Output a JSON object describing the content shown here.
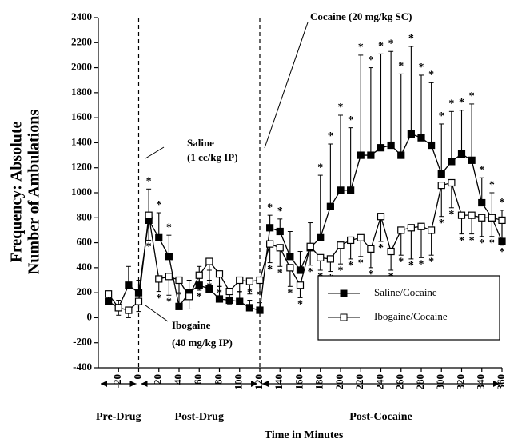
{
  "chart_data": {
    "type": "line",
    "y_label": [
      "Frequency: Absolute",
      "Number of Ambulations"
    ],
    "x_label": "Time in Minutes",
    "x": [
      -30,
      -20,
      -10,
      0,
      10,
      20,
      30,
      40,
      50,
      60,
      70,
      80,
      90,
      100,
      110,
      120,
      130,
      140,
      150,
      160,
      170,
      180,
      190,
      200,
      210,
      220,
      230,
      240,
      250,
      260,
      270,
      280,
      290,
      300,
      310,
      320,
      330,
      340,
      350,
      360
    ],
    "series": [
      {
        "name": "Saline/Cocaine",
        "color": "#000000",
        "marker_fill": "#000000",
        "error_direction": "up",
        "values": [
          130,
          80,
          260,
          200,
          780,
          640,
          490,
          90,
          200,
          260,
          230,
          150,
          140,
          130,
          80,
          60,
          720,
          690,
          490,
          380,
          560,
          640,
          890,
          1020,
          1020,
          1300,
          1300,
          1360,
          1380,
          1300,
          1470,
          1440,
          1380,
          1150,
          1250,
          1310,
          1260,
          920,
          800,
          610
        ],
        "errors": [
          80,
          60,
          150,
          100,
          250,
          200,
          170,
          100,
          100,
          150,
          150,
          100,
          80,
          80,
          60,
          60,
          100,
          100,
          200,
          150,
          200,
          500,
          500,
          600,
          500,
          800,
          700,
          750,
          750,
          650,
          700,
          500,
          500,
          400,
          400,
          350,
          450,
          200,
          200,
          250
        ],
        "significant": [
          false,
          false,
          false,
          false,
          true,
          true,
          true,
          false,
          false,
          false,
          false,
          false,
          false,
          true,
          true,
          true,
          true,
          true,
          false,
          false,
          false,
          true,
          true,
          true,
          true,
          true,
          true,
          true,
          true,
          true,
          true,
          true,
          true,
          true,
          true,
          true,
          true,
          true,
          true,
          true
        ]
      },
      {
        "name": "Ibogaine/Cocaine",
        "color": "#000000",
        "marker_fill": "#ffffff",
        "error_direction": "down",
        "values": [
          190,
          80,
          60,
          130,
          820,
          310,
          330,
          300,
          170,
          340,
          450,
          350,
          210,
          300,
          290,
          300,
          590,
          560,
          400,
          260,
          570,
          480,
          470,
          580,
          620,
          640,
          550,
          810,
          530,
          700,
          720,
          730,
          700,
          1060,
          1080,
          820,
          820,
          800,
          800,
          780
        ],
        "errors": [
          80,
          60,
          60,
          80,
          200,
          100,
          150,
          100,
          100,
          120,
          150,
          100,
          100,
          100,
          100,
          100,
          150,
          150,
          150,
          100,
          150,
          100,
          100,
          150,
          150,
          150,
          150,
          200,
          150,
          200,
          250,
          250,
          200,
          250,
          200,
          150,
          150,
          150,
          150,
          200
        ],
        "significant": [
          false,
          false,
          false,
          false,
          true,
          true,
          true,
          false,
          false,
          true,
          true,
          true,
          false,
          false,
          false,
          false,
          true,
          true,
          true,
          true,
          true,
          true,
          true,
          true,
          true,
          true,
          true,
          true,
          true,
          true,
          true,
          true,
          true,
          true,
          true,
          true,
          true,
          true,
          true,
          true
        ]
      }
    ],
    "significance_marker": "*",
    "vlines": [
      0,
      120
    ],
    "annotations": [
      "Cocaine (20 mg/kg SC)",
      "Saline",
      "(1 cc/kg IP)",
      "Ibogaine",
      "(40 mg/kg IP)"
    ],
    "phases": [
      {
        "label": "Pre-Drug",
        "start": -40,
        "end": 0
      },
      {
        "label": "Post-Drug",
        "start": 0,
        "end": 120
      },
      {
        "label": "Post-Cocaine",
        "start": 120,
        "end": 360
      }
    ],
    "xlim": [
      -40,
      360
    ],
    "xticks": [
      -20,
      0,
      20,
      40,
      60,
      80,
      100,
      120,
      140,
      160,
      180,
      200,
      220,
      240,
      260,
      280,
      300,
      320,
      340,
      360
    ],
    "ylim": [
      -400,
      2400
    ],
    "yticks": [
      -400,
      -200,
      0,
      200,
      400,
      600,
      800,
      1000,
      1200,
      1400,
      1600,
      1800,
      2000,
      2200,
      2400
    ],
    "legend": "lower right"
  }
}
